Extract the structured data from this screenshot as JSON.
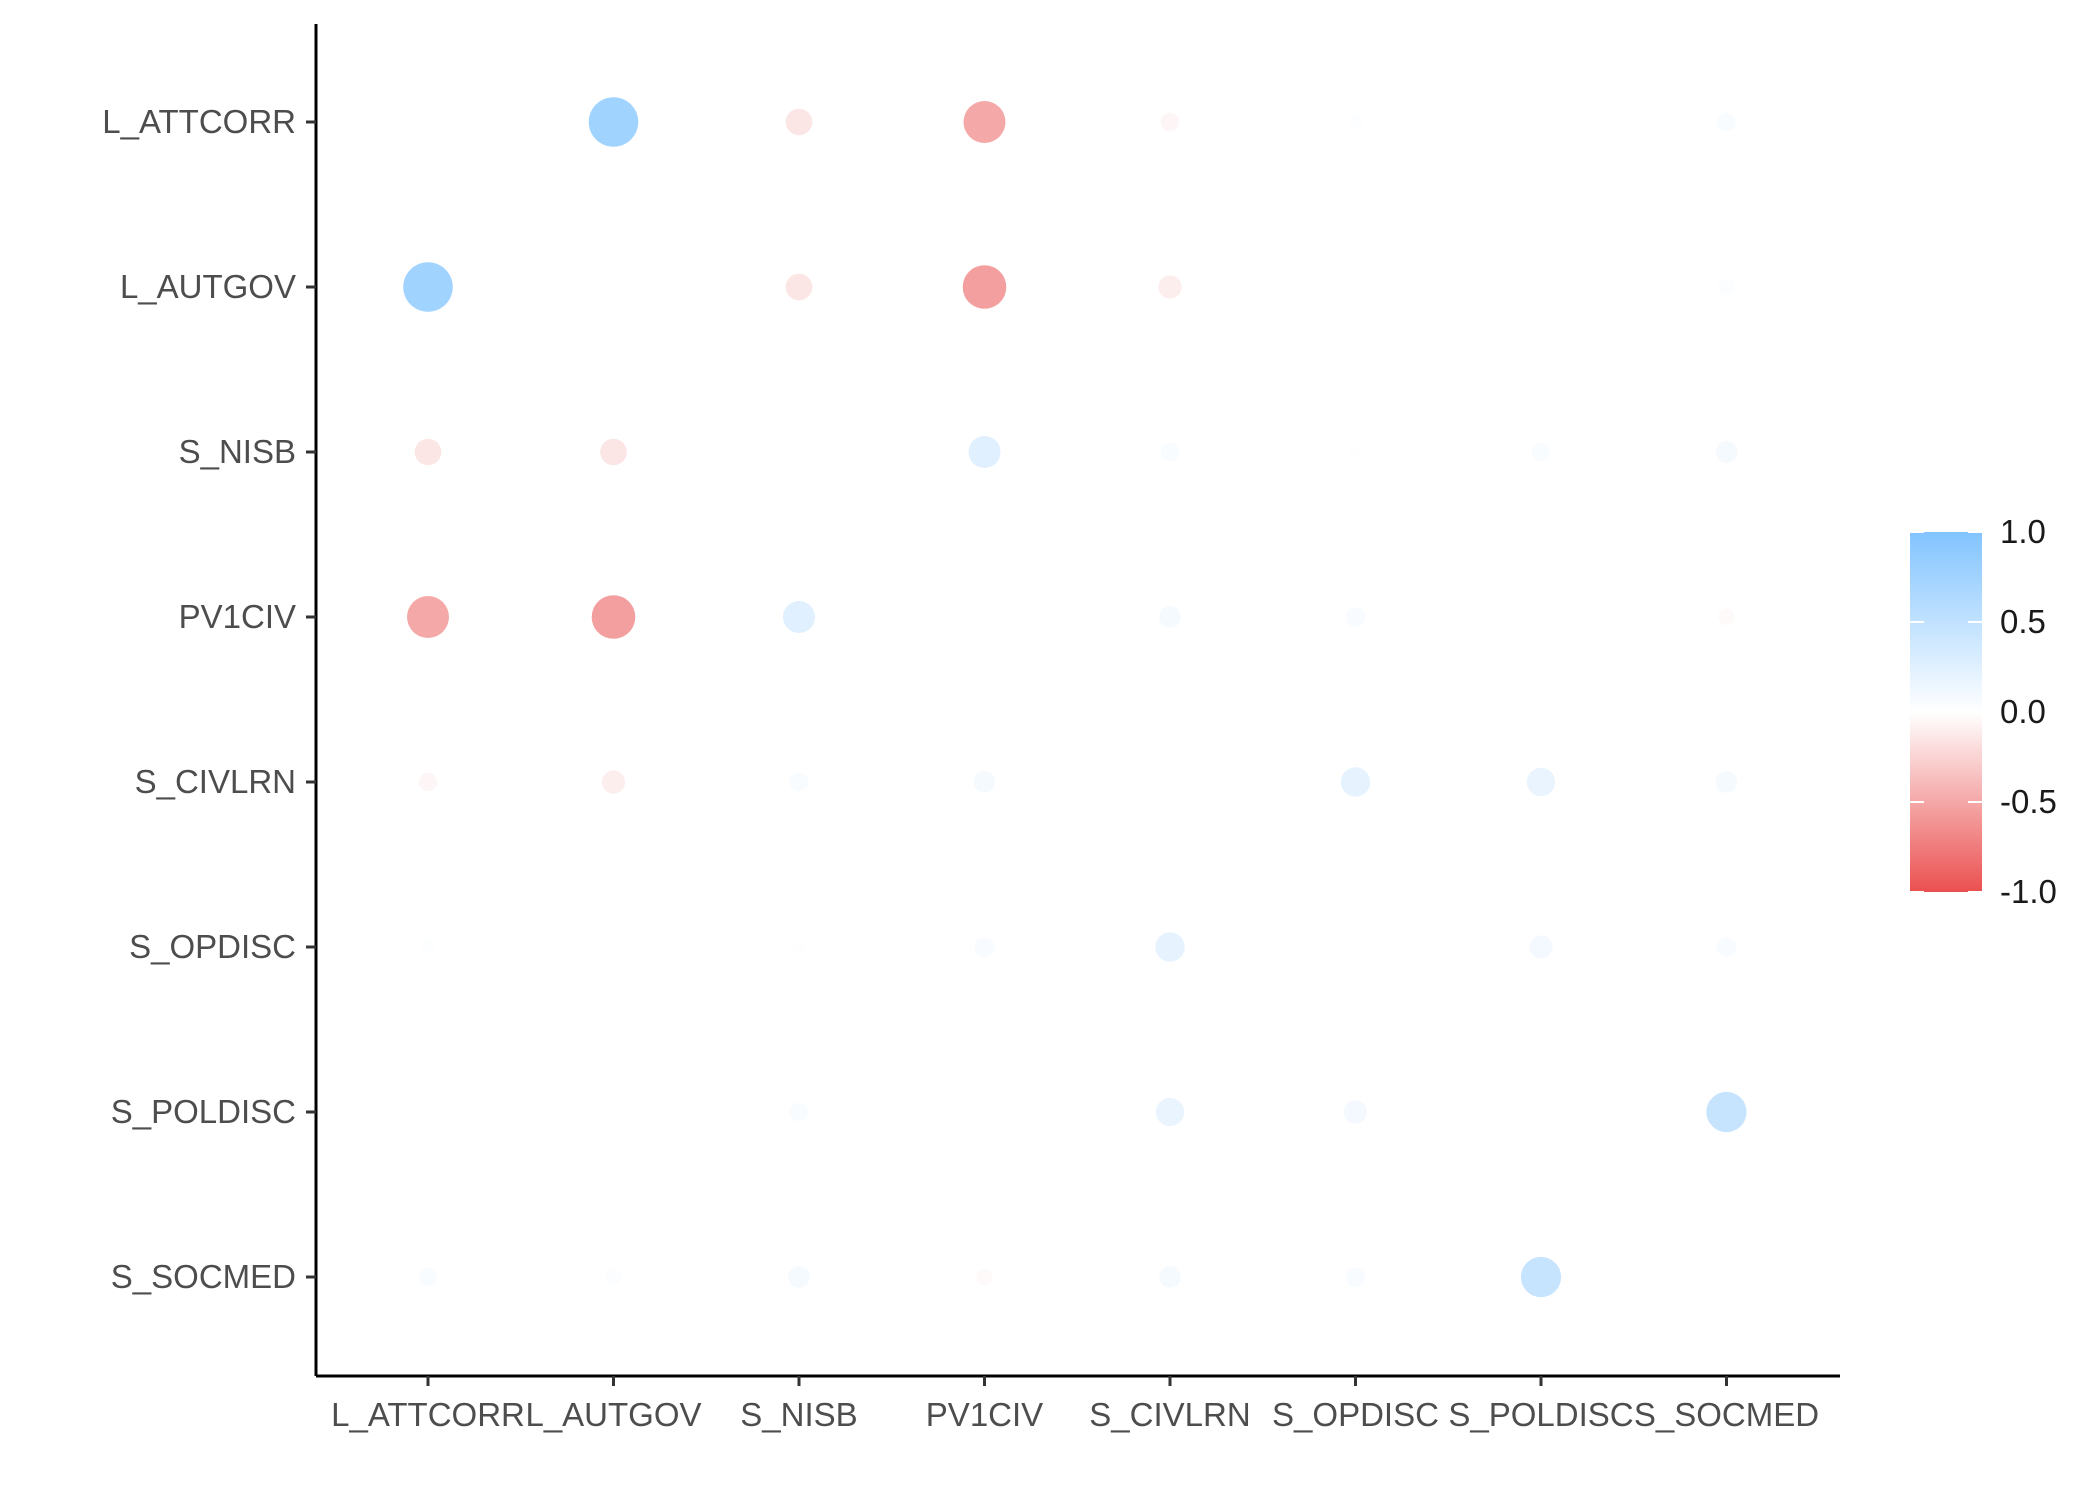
{
  "chart_data": {
    "type": "heatmap",
    "title": "",
    "xlabel": "",
    "ylabel": "",
    "x_categories": [
      "L_ATTCORR",
      "L_AUTGOV",
      "S_NISB",
      "PV1CIV",
      "S_CIVLRN",
      "S_OPDISC",
      "S_POLDISC",
      "S_SOCMED"
    ],
    "y_categories": [
      "L_ATTCORR",
      "L_AUTGOV",
      "S_NISB",
      "PV1CIV",
      "S_CIVLRN",
      "S_OPDISC",
      "S_POLDISC",
      "S_SOCMED"
    ],
    "value_range": [
      -1,
      1
    ],
    "colors": {
      "positive": "#82c4ff",
      "zero": "#ffffff",
      "negative": "#eb5050"
    },
    "legend": {
      "placement": "right",
      "ticks": [
        1.0,
        0.5,
        0.0,
        -0.5,
        -1.0
      ],
      "tick_labels": [
        "1.0",
        "0.5",
        "0.0",
        "-0.5",
        "-1.0"
      ]
    },
    "matrix": [
      [
        0,
        0.75,
        -0.15,
        -0.5,
        -0.05,
        0.02,
        0,
        0.05
      ],
      [
        0.75,
        0,
        -0.15,
        -0.55,
        -0.1,
        0,
        0,
        0.03
      ],
      [
        -0.15,
        -0.15,
        0,
        0.25,
        0.05,
        0.01,
        0.05,
        0.08
      ],
      [
        -0.5,
        -0.55,
        0.25,
        0,
        0.08,
        0.06,
        0,
        -0.03
      ],
      [
        -0.05,
        -0.1,
        0.05,
        0.08,
        0,
        0.2,
        0.18,
        0.08
      ],
      [
        0.02,
        0,
        0.01,
        0.06,
        0.2,
        0,
        0.1,
        0.06
      ],
      [
        0,
        0,
        0.05,
        0,
        0.18,
        0.1,
        0,
        0.45
      ],
      [
        0.05,
        0.03,
        0.08,
        -0.03,
        0.08,
        0.06,
        0.45,
        0
      ]
    ]
  }
}
